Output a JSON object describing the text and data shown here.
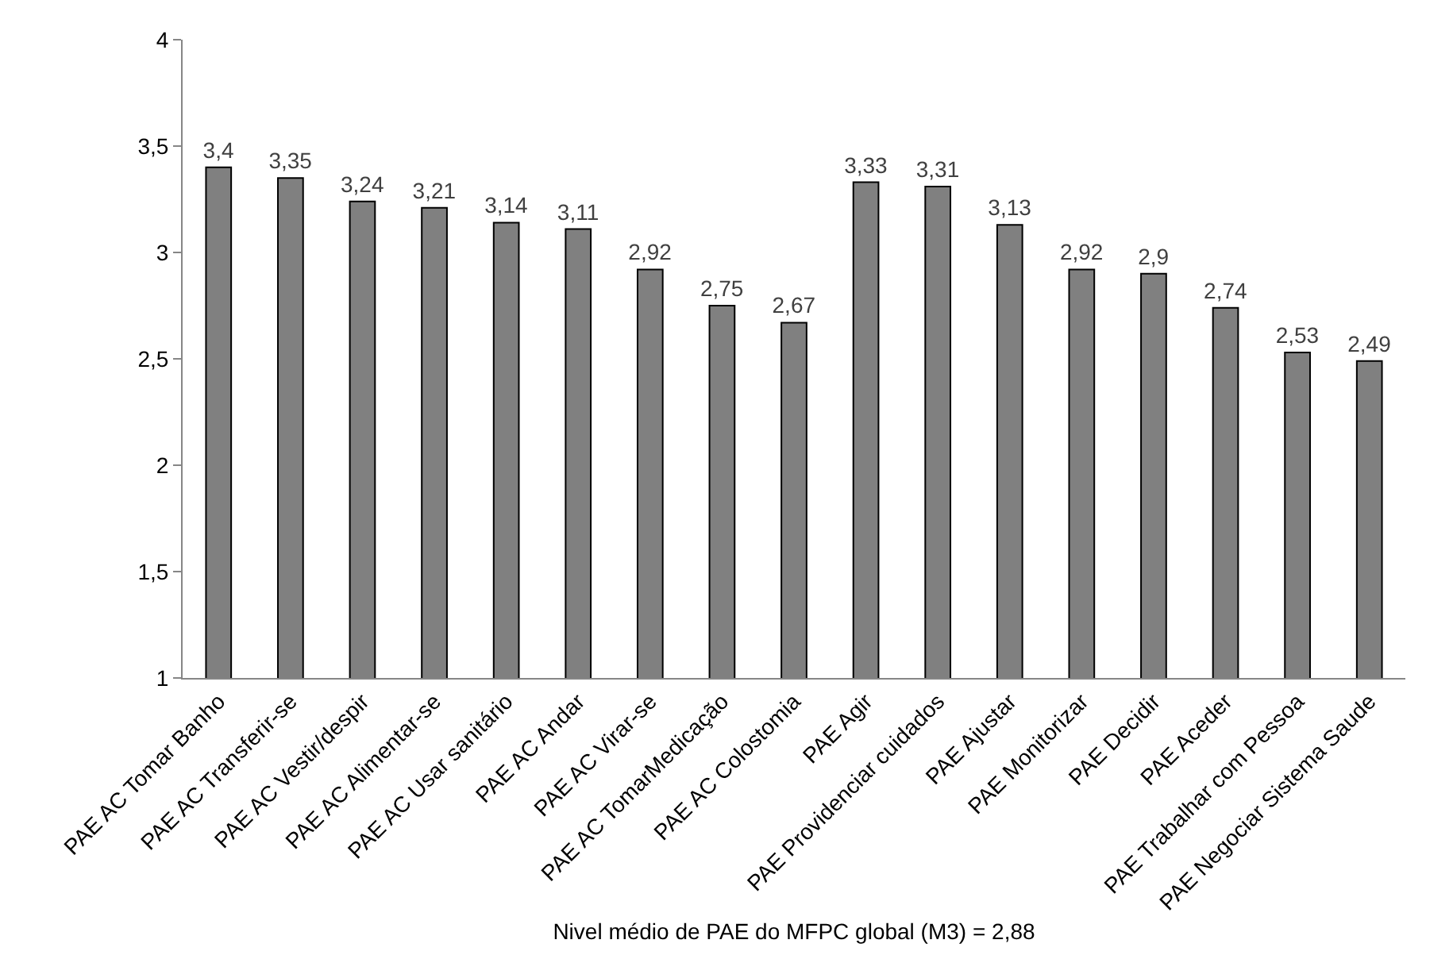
{
  "chart_data": {
    "type": "bar",
    "xlabel": "Nivel médio de PAE do MFPC global (M3) = 2,88",
    "categories": [
      "PAE AC Tomar Banho",
      "PAE AC Transferir-se",
      "PAE AC Vestir/despir",
      "PAE AC Alimentar-se",
      "PAE AC Usar sanitário",
      "PAE AC Andar",
      "PAE AC Virar-se",
      "PAE AC TomarMedicação",
      "PAE AC Colostomia",
      "PAE Agir",
      "PAE Providenciar cuidados",
      "PAE Ajustar",
      "PAE Monitorizar",
      "PAE Decidir",
      "PAE Aceder",
      "PAE Trabalhar com Pessoa",
      "PAE Negociar Sistema Saude"
    ],
    "values": [
      3.4,
      3.35,
      3.24,
      3.21,
      3.14,
      3.11,
      2.92,
      2.75,
      2.67,
      3.33,
      3.31,
      3.13,
      2.92,
      2.9,
      2.74,
      2.53,
      2.49
    ],
    "value_labels": [
      "3,4",
      "3,35",
      "3,24",
      "3,21",
      "3,14",
      "3,11",
      "2,92",
      "2,75",
      "2,67",
      "3,33",
      "3,31",
      "3,13",
      "2,92",
      "2,9",
      "2,74",
      "2,53",
      "2,49"
    ],
    "color": "#808080",
    "ylim": [
      1,
      4
    ],
    "yticks": [
      1,
      {
        "value": 1.5,
        "label": "1,5"
      },
      2,
      {
        "value": 2.5,
        "label": "2,5"
      },
      3,
      {
        "value": 3.5,
        "label": "3,5"
      },
      4
    ]
  }
}
